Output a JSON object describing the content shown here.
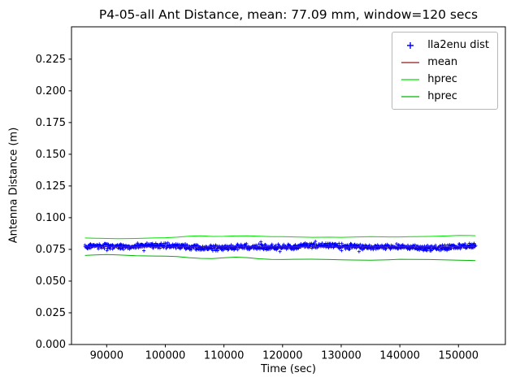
{
  "chart_data": {
    "type": "scatter",
    "title": "P4-05-all Ant Distance, mean: 77.09 mm, window=120 secs",
    "xlabel": "Time (sec)",
    "ylabel": "Antenna Distance (m)",
    "xlim": [
      84000,
      158000
    ],
    "ylim": [
      0.0,
      0.2505
    ],
    "grid": false,
    "xticks": [
      {
        "v": 90000,
        "label": "90000"
      },
      {
        "v": 100000,
        "label": "100000"
      },
      {
        "v": 110000,
        "label": "110000"
      },
      {
        "v": 120000,
        "label": "120000"
      },
      {
        "v": 130000,
        "label": "130000"
      },
      {
        "v": 140000,
        "label": "140000"
      },
      {
        "v": 150000,
        "label": "150000"
      }
    ],
    "yticks": [
      {
        "v": 0.0,
        "label": "0.000"
      },
      {
        "v": 0.025,
        "label": "0.025"
      },
      {
        "v": 0.05,
        "label": "0.050"
      },
      {
        "v": 0.075,
        "label": "0.075"
      },
      {
        "v": 0.1,
        "label": "0.100"
      },
      {
        "v": 0.125,
        "label": "0.125"
      },
      {
        "v": 0.15,
        "label": "0.150"
      },
      {
        "v": 0.175,
        "label": "0.175"
      },
      {
        "v": 0.2,
        "label": "0.200"
      },
      {
        "v": 0.225,
        "label": "0.225"
      }
    ],
    "legend": {
      "position": "upper-right",
      "items": [
        {
          "label": "lla2enu dist",
          "marker": "plus",
          "color": "#0000ff"
        },
        {
          "label": "mean",
          "marker": "line",
          "color": "#8b1a1a"
        },
        {
          "label": "hprec",
          "marker": "line",
          "color": "#00e000"
        },
        {
          "label": "hprec",
          "marker": "line",
          "color": "#00b300"
        }
      ]
    },
    "series": [
      {
        "name": "lla2enu dist",
        "type": "scatter",
        "marker": "plus",
        "color": "#0000ff",
        "seed": 42,
        "x_start": 86300,
        "x_end": 152900,
        "n": 950,
        "y_mean": 0.0771,
        "y_spread": 0.0026
      },
      {
        "name": "mean",
        "type": "line",
        "color": "#8b1a1a",
        "width": 1,
        "x": [
          86300,
          152900
        ],
        "y": [
          0.07709,
          0.07709
        ]
      },
      {
        "name": "hprec-upper",
        "type": "line",
        "color": "#00e000",
        "width": 1,
        "x": [
          86300,
          88000,
          90000,
          92000,
          95000,
          98000,
          100000,
          102000,
          104000,
          106000,
          108000,
          110000,
          112000,
          114000,
          116000,
          118000,
          120000,
          122000,
          125000,
          128000,
          130000,
          132000,
          135000,
          138000,
          140000,
          142000,
          145000,
          148000,
          150000,
          152000,
          152900
        ],
        "y": [
          0.084,
          0.0838,
          0.0836,
          0.0834,
          0.0836,
          0.084,
          0.0842,
          0.0846,
          0.0854,
          0.0857,
          0.0852,
          0.0853,
          0.0856,
          0.0857,
          0.0854,
          0.0851,
          0.085,
          0.0848,
          0.0845,
          0.0846,
          0.0845,
          0.0847,
          0.0851,
          0.0848,
          0.0848,
          0.085,
          0.0852,
          0.0856,
          0.086,
          0.0859,
          0.0858
        ]
      },
      {
        "name": "hprec-lower",
        "type": "line",
        "color": "#00b300",
        "width": 1,
        "x": [
          86300,
          88000,
          90000,
          92000,
          95000,
          98000,
          100000,
          102000,
          104000,
          106000,
          108000,
          110000,
          112000,
          114000,
          116000,
          118000,
          120000,
          122000,
          125000,
          128000,
          130000,
          132000,
          135000,
          138000,
          140000,
          142000,
          145000,
          148000,
          150000,
          152000,
          152900
        ],
        "y": [
          0.0702,
          0.0706,
          0.071,
          0.0706,
          0.07,
          0.0698,
          0.0697,
          0.0694,
          0.0685,
          0.0679,
          0.0678,
          0.0684,
          0.0689,
          0.0685,
          0.0676,
          0.0671,
          0.067,
          0.0672,
          0.0673,
          0.067,
          0.0668,
          0.0666,
          0.0665,
          0.0668,
          0.0672,
          0.0671,
          0.067,
          0.0667,
          0.0665,
          0.0663,
          0.0662
        ]
      }
    ]
  }
}
